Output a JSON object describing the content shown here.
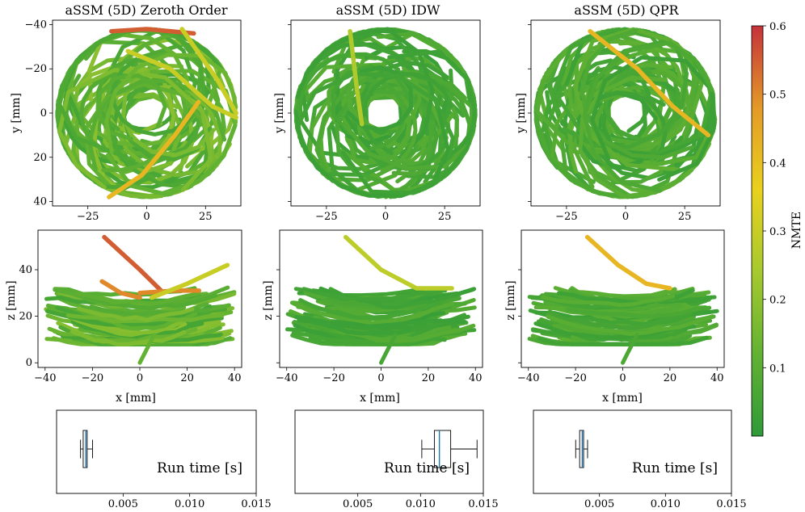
{
  "figure": {
    "colorbar": {
      "label": "NMTE",
      "range": [
        0.0,
        0.6
      ],
      "ticks": [
        "0.1",
        "0.2",
        "0.3",
        "0.4",
        "0.5",
        "0.6"
      ],
      "tick_values": [
        0.1,
        0.2,
        0.3,
        0.4,
        0.5,
        0.6
      ],
      "colormap": [
        "#2e9a38",
        "#62b232",
        "#a6c92e",
        "#e9d11d",
        "#e49a27",
        "#c5323a"
      ]
    },
    "axis_labels": {
      "y_top": "y [mm]",
      "z_mid": "z [mm]",
      "x": "x [mm]",
      "runtime": "Run time [s]"
    },
    "tick_labels": {
      "top_x": [
        "−25",
        "0",
        "25"
      ],
      "top_y": [
        "40",
        "20",
        "0",
        "−20",
        "−40"
      ],
      "mid_x": [
        "−40",
        "−20",
        "0",
        "20",
        "40"
      ],
      "mid_y": [
        "0",
        "20",
        "40"
      ],
      "bot_x": [
        "0.005",
        "0.010",
        "0.015"
      ]
    },
    "panels": [
      {
        "title": "aSSM (5D) Zeroth Order"
      },
      {
        "title": "aSSM (5D) IDW"
      },
      {
        "title": "aSSM (5D) QPR"
      }
    ]
  },
  "chart_data": [
    {
      "type": "scatter",
      "title": "aSSM (5D) Zeroth Order",
      "xlabel": "",
      "ylabel": "y [mm]",
      "xlim": [
        -40,
        40
      ],
      "ylim": [
        -42,
        42
      ],
      "xticks": [
        -25,
        0,
        25
      ],
      "yticks": [
        -40,
        -20,
        0,
        20,
        40
      ],
      "color_by": "NMTE",
      "highlight_trajectories": [
        {
          "points": [
            [
              -15,
              37
            ],
            [
              0,
              38
            ],
            [
              20,
              36
            ]
          ],
          "nmte": 0.55
        },
        {
          "points": [
            [
              -8,
              28
            ],
            [
              10,
              20
            ],
            [
              28,
              3
            ],
            [
              38,
              -2
            ]
          ],
          "nmte": 0.3
        },
        {
          "points": [
            [
              -16,
              -38
            ],
            [
              -2,
              -28
            ],
            [
              12,
              -10
            ],
            [
              22,
              5
            ]
          ],
          "nmte": 0.42
        },
        {
          "points": [
            [
              15,
              38
            ],
            [
              30,
              15
            ],
            [
              38,
              0
            ]
          ],
          "nmte": 0.3
        }
      ]
    },
    {
      "type": "scatter",
      "title": "aSSM (5D) IDW",
      "xlabel": "",
      "ylabel": "y [mm]",
      "xlim": [
        -40,
        40
      ],
      "ylim": [
        -42,
        42
      ],
      "xticks": [
        -25,
        0,
        25
      ],
      "yticks": [
        -40,
        -20,
        0,
        20,
        40
      ],
      "color_by": "NMTE",
      "highlight_trajectories": [
        {
          "points": [
            [
              -15,
              37
            ],
            [
              -12,
              10
            ],
            [
              -10,
              -5
            ]
          ],
          "nmte": 0.26
        }
      ]
    },
    {
      "type": "scatter",
      "title": "aSSM (5D) QPR",
      "xlabel": "",
      "ylabel": "y [mm]",
      "xlim": [
        -40,
        40
      ],
      "ylim": [
        -42,
        42
      ],
      "xticks": [
        -25,
        0,
        25
      ],
      "yticks": [
        -40,
        -20,
        0,
        20,
        40
      ],
      "color_by": "NMTE",
      "highlight_trajectories": [
        {
          "points": [
            [
              -15,
              37
            ],
            [
              5,
              20
            ],
            [
              20,
              3
            ],
            [
              35,
              -10
            ]
          ],
          "nmte": 0.42
        }
      ]
    },
    {
      "type": "scatter",
      "xlabel": "x [mm]",
      "ylabel": "z [mm]",
      "xlim": [
        -43,
        43
      ],
      "ylim": [
        -2,
        57
      ],
      "xticks": [
        -40,
        -20,
        0,
        20,
        40
      ],
      "yticks": [
        0,
        20,
        40
      ],
      "color_by": "NMTE",
      "highlight_trajectories": [
        {
          "points": [
            [
              -15,
              54
            ],
            [
              0,
              40
            ],
            [
              10,
              30
            ]
          ],
          "nmte": 0.55
        },
        {
          "points": [
            [
              -16,
              35
            ],
            [
              -8,
              30
            ],
            [
              0,
              28
            ]
          ],
          "nmte": 0.5
        },
        {
          "points": [
            [
              0,
              30
            ],
            [
              15,
              31
            ],
            [
              25,
              31
            ]
          ],
          "nmte": 0.5
        },
        {
          "points": [
            [
              5,
              28
            ],
            [
              20,
              34
            ],
            [
              37,
              42
            ]
          ],
          "nmte": 0.3
        }
      ]
    },
    {
      "type": "scatter",
      "xlabel": "x [mm]",
      "ylabel": "z [mm]",
      "xlim": [
        -43,
        43
      ],
      "ylim": [
        -2,
        57
      ],
      "xticks": [
        -40,
        -20,
        0,
        20,
        40
      ],
      "yticks": [
        0,
        20,
        40
      ],
      "color_by": "NMTE",
      "highlight_trajectories": [
        {
          "points": [
            [
              -15,
              54
            ],
            [
              0,
              40
            ],
            [
              15,
              32
            ],
            [
              30,
              32
            ]
          ],
          "nmte": 0.28
        }
      ]
    },
    {
      "type": "scatter",
      "xlabel": "x [mm]",
      "ylabel": "z [mm]",
      "xlim": [
        -43,
        43
      ],
      "ylim": [
        -2,
        57
      ],
      "xticks": [
        -40,
        -20,
        0,
        20,
        40
      ],
      "yticks": [
        0,
        20,
        40
      ],
      "color_by": "NMTE",
      "highlight_trajectories": [
        {
          "points": [
            [
              -15,
              54
            ],
            [
              -2,
              42
            ],
            [
              10,
              34
            ],
            [
              20,
              32
            ]
          ],
          "nmte": 0.42
        }
      ]
    },
    {
      "type": "box",
      "label": "Run time [s]",
      "xlim": [
        0.0,
        0.015
      ],
      "xticks": [
        0.005,
        0.01,
        0.015
      ],
      "whisker_low": 0.0018,
      "q1": 0.002,
      "median": 0.0022,
      "q3": 0.0023,
      "whisker_high": 0.0027
    },
    {
      "type": "box",
      "label": "Run time [s]",
      "xlim": [
        0.0,
        0.015
      ],
      "xticks": [
        0.005,
        0.01,
        0.015
      ],
      "whisker_low": 0.0101,
      "q1": 0.0111,
      "median": 0.0115,
      "q3": 0.0124,
      "whisker_high": 0.0145
    },
    {
      "type": "box",
      "label": "Run time [s]",
      "xlim": [
        0.0,
        0.015
      ],
      "xticks": [
        0.005,
        0.01,
        0.015
      ],
      "whisker_low": 0.0032,
      "q1": 0.0035,
      "median": 0.0037,
      "q3": 0.0038,
      "whisker_high": 0.0041
    }
  ]
}
